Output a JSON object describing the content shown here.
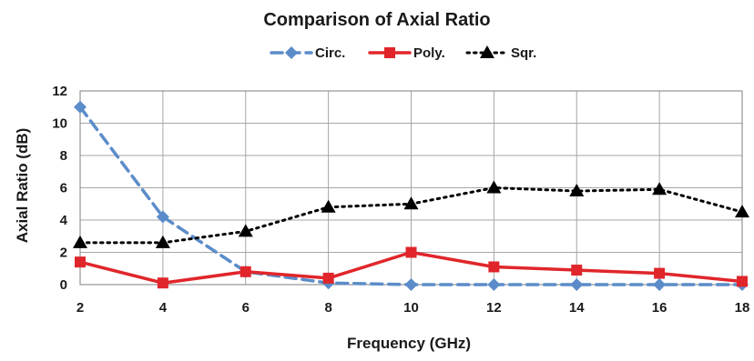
{
  "chart_data": {
    "type": "line",
    "title": "Comparison of Axial Ratio",
    "xlabel": "Frequency (GHz)",
    "ylabel": "Axial Ratio (dB)",
    "x": [
      2,
      4,
      6,
      8,
      10,
      12,
      14,
      16,
      18
    ],
    "xlim": [
      2,
      18
    ],
    "ylim": [
      0,
      12
    ],
    "xticks": [
      2,
      4,
      6,
      8,
      10,
      12,
      14,
      16,
      18
    ],
    "yticks": [
      0,
      2,
      4,
      6,
      8,
      10,
      12
    ],
    "grid": true,
    "legend_position": "top-center",
    "series": [
      {
        "name": "Circ.",
        "color": "#5b8cc9",
        "line": "dashed",
        "marker": "diamond",
        "values": [
          11.0,
          4.2,
          0.8,
          0.1,
          0.0,
          0.0,
          0.0,
          0.0,
          0.0
        ]
      },
      {
        "name": "Poly.",
        "color": "#e0262b",
        "line": "solid",
        "marker": "square",
        "values": [
          1.4,
          0.1,
          0.8,
          0.4,
          2.0,
          1.1,
          0.9,
          0.7,
          0.2
        ]
      },
      {
        "name": "Sqr.",
        "color": "#000000",
        "line": "dotted",
        "marker": "triangle",
        "values": [
          2.6,
          2.6,
          3.3,
          4.8,
          5.0,
          6.0,
          5.8,
          5.9,
          4.5
        ]
      }
    ]
  }
}
